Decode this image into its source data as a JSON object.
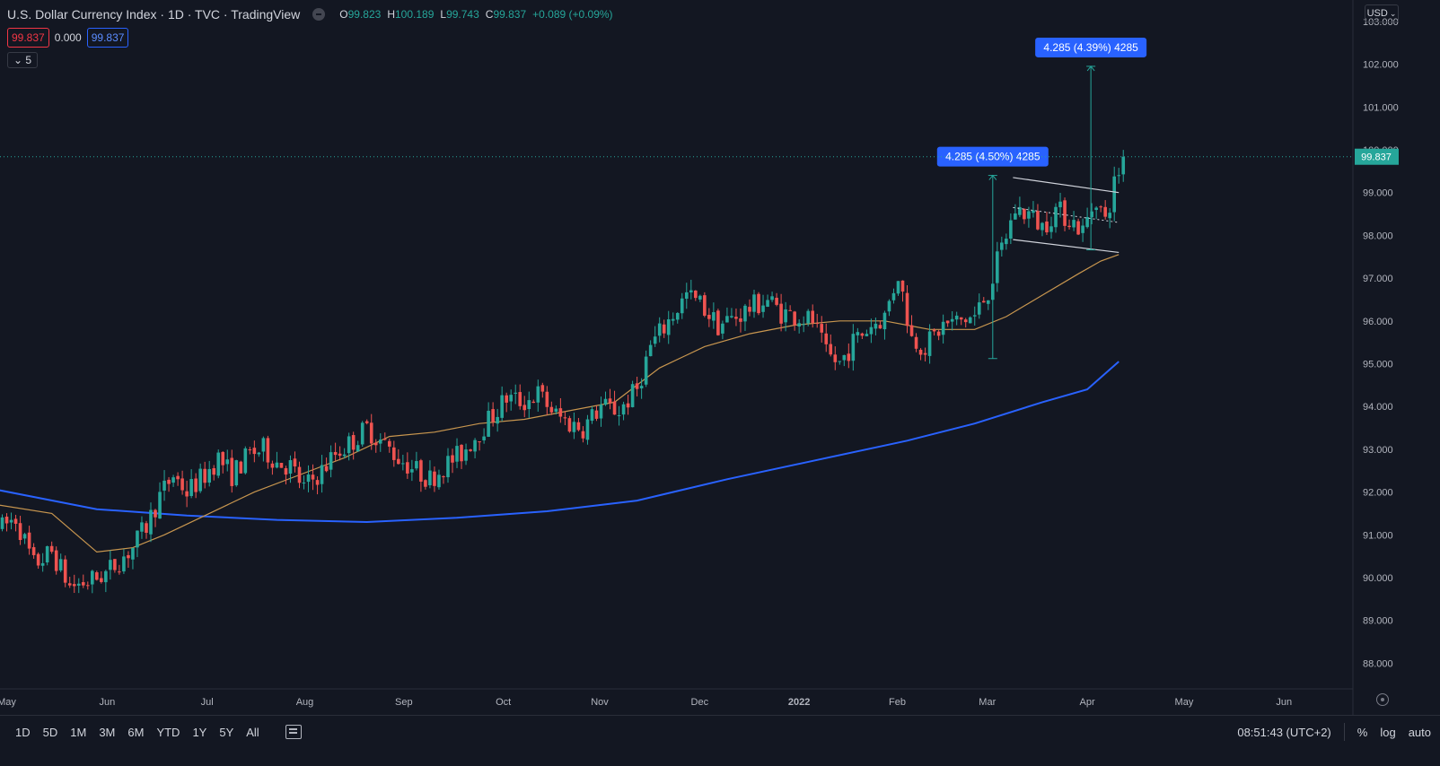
{
  "header": {
    "title": "U.S. Dollar Currency Index · 1D · TVC · TradingView",
    "ohlc": [
      {
        "k": "O",
        "v": "99.823"
      },
      {
        "k": "H",
        "v": "100.189"
      },
      {
        "k": "L",
        "v": "99.743"
      },
      {
        "k": "C",
        "v": "99.837"
      },
      {
        "k": "",
        "v": "+0.089 (+0.09%)"
      }
    ]
  },
  "indicators": {
    "sell_price": "99.837",
    "spread": "0.000",
    "buy_price": "99.837",
    "collapse_label": "5"
  },
  "currency": "USD",
  "colors": {
    "background": "#131722",
    "up": "#26a69a",
    "down": "#ef5350",
    "ma_short": "#c8964f",
    "ma_long": "#2962ff",
    "label": "#2962ff",
    "last_price": "#26a69a"
  },
  "chart_data": {
    "type": "candlestick",
    "title": "U.S. Dollar Currency Index",
    "y_ticks": [
      "88.000",
      "89.000",
      "90.000",
      "91.000",
      "92.000",
      "93.000",
      "94.000",
      "95.000",
      "96.000",
      "97.000",
      "98.000",
      "99.000",
      "100.000",
      "101.000",
      "102.000",
      "103.000"
    ],
    "ylim": [
      87.4,
      103.5
    ],
    "x_ticks": [
      {
        "label": "May",
        "t": 0.0
      },
      {
        "label": "Jun",
        "t": 22.3
      },
      {
        "label": "Jul",
        "t": 44.5
      },
      {
        "label": "Aug",
        "t": 66.2
      },
      {
        "label": "Sep",
        "t": 88.2
      },
      {
        "label": "Oct",
        "t": 110.3
      },
      {
        "label": "Nov",
        "t": 131.7
      },
      {
        "label": "Dec",
        "t": 153.9
      },
      {
        "label": "2022",
        "t": 176.0
      },
      {
        "label": "Feb",
        "t": 197.8
      },
      {
        "label": "Mar",
        "t": 217.8
      },
      {
        "label": "Apr",
        "t": 240.0
      },
      {
        "label": "May",
        "t": 261.5
      },
      {
        "label": "Jun",
        "t": 283.7
      }
    ],
    "xlim": [
      -1.5,
      299
    ],
    "last_price": 99.837,
    "trend_points": [
      [
        -2,
        91.1
      ],
      [
        2,
        91.4
      ],
      [
        6,
        90.3
      ],
      [
        10,
        90.6
      ],
      [
        14,
        89.8
      ],
      [
        18,
        89.9
      ],
      [
        22,
        90.1
      ],
      [
        25,
        90.4
      ],
      [
        28,
        90.7
      ],
      [
        31,
        91.2
      ],
      [
        34,
        91.9
      ],
      [
        37,
        92.4
      ],
      [
        40,
        92.0
      ],
      [
        44,
        92.4
      ],
      [
        47,
        92.8
      ],
      [
        50,
        92.4
      ],
      [
        54,
        92.9
      ],
      [
        57,
        93.0
      ],
      [
        60,
        92.7
      ],
      [
        63,
        92.6
      ],
      [
        66,
        92.1
      ],
      [
        70,
        92.5
      ],
      [
        73,
        92.9
      ],
      [
        77,
        93.2
      ],
      [
        80,
        93.5
      ],
      [
        84,
        93.1
      ],
      [
        87,
        92.8
      ],
      [
        91,
        92.5
      ],
      [
        94,
        92.3
      ],
      [
        97,
        92.6
      ],
      [
        101,
        92.9
      ],
      [
        104,
        93.3
      ],
      [
        108,
        93.8
      ],
      [
        111,
        94.2
      ],
      [
        115,
        94.1
      ],
      [
        118,
        94.3
      ],
      [
        122,
        93.8
      ],
      [
        125,
        93.6
      ],
      [
        128,
        93.5
      ],
      [
        132,
        94.0
      ],
      [
        136,
        93.9
      ],
      [
        140,
        94.4
      ],
      [
        143,
        95.4
      ],
      [
        147,
        96.0
      ],
      [
        151,
        96.6
      ],
      [
        154,
        96.4
      ],
      [
        158,
        95.9
      ],
      [
        162,
        96.1
      ],
      [
        165,
        96.3
      ],
      [
        169,
        96.5
      ],
      [
        172,
        96.2
      ],
      [
        176,
        96.1
      ],
      [
        179,
        96.0
      ],
      [
        182,
        95.2
      ],
      [
        185,
        95.0
      ],
      [
        188,
        95.5
      ],
      [
        192,
        95.9
      ],
      [
        195,
        96.1
      ],
      [
        198,
        97.1
      ],
      [
        201,
        95.6
      ],
      [
        204,
        95.4
      ],
      [
        208,
        95.9
      ],
      [
        212,
        96.0
      ],
      [
        215,
        96.1
      ],
      [
        218,
        96.7
      ],
      [
        221,
        97.7
      ],
      [
        224,
        98.6
      ],
      [
        227,
        98.5
      ],
      [
        230,
        98.2
      ],
      [
        233,
        98.6
      ],
      [
        236,
        98.4
      ],
      [
        239,
        98.1
      ],
      [
        242,
        98.9
      ],
      [
        244,
        98.3
      ],
      [
        246,
        99.2
      ],
      [
        248,
        99.8
      ]
    ],
    "ma_short": [
      [
        -2,
        91.7
      ],
      [
        10,
        91.5
      ],
      [
        20,
        90.6
      ],
      [
        28,
        90.7
      ],
      [
        35,
        91.0
      ],
      [
        45,
        91.5
      ],
      [
        55,
        92.0
      ],
      [
        65,
        92.4
      ],
      [
        75,
        92.8
      ],
      [
        85,
        93.3
      ],
      [
        95,
        93.4
      ],
      [
        105,
        93.6
      ],
      [
        115,
        93.7
      ],
      [
        125,
        93.9
      ],
      [
        135,
        94.1
      ],
      [
        145,
        94.9
      ],
      [
        155,
        95.4
      ],
      [
        165,
        95.7
      ],
      [
        175,
        95.9
      ],
      [
        185,
        96.0
      ],
      [
        195,
        96.0
      ],
      [
        205,
        95.8
      ],
      [
        215,
        95.8
      ],
      [
        222,
        96.1
      ],
      [
        230,
        96.6
      ],
      [
        238,
        97.1
      ],
      [
        243,
        97.4
      ],
      [
        247,
        97.55
      ]
    ],
    "ma_long": [
      [
        -2,
        92.05
      ],
      [
        20,
        91.6
      ],
      [
        40,
        91.45
      ],
      [
        60,
        91.35
      ],
      [
        80,
        91.3
      ],
      [
        100,
        91.4
      ],
      [
        120,
        91.55
      ],
      [
        140,
        91.8
      ],
      [
        160,
        92.3
      ],
      [
        180,
        92.75
      ],
      [
        200,
        93.2
      ],
      [
        215,
        93.6
      ],
      [
        230,
        94.1
      ],
      [
        240,
        94.4
      ],
      [
        247,
        95.05
      ]
    ],
    "channel": {
      "upper": [
        [
          223.5,
          99.35
        ],
        [
          247,
          99.0
        ]
      ],
      "lower": [
        [
          223.5,
          97.9
        ],
        [
          247,
          97.6
        ]
      ],
      "mid": [
        [
          223.5,
          98.65
        ],
        [
          247,
          98.3
        ]
      ]
    },
    "measure_1": {
      "label": "4.285 (4.50%) 4285",
      "t": 219.0,
      "from": 95.12,
      "to": 99.4
    },
    "measure_2": {
      "label": "4.285 (4.39%) 4285",
      "t": 240.8,
      "from": 97.66,
      "to": 101.95
    }
  },
  "bottom": {
    "timeframes": [
      "1D",
      "5D",
      "1M",
      "3M",
      "6M",
      "YTD",
      "1Y",
      "5Y",
      "All"
    ],
    "time": "08:51:43 (UTC+2)",
    "percent": "%",
    "log": "log",
    "auto": "auto"
  }
}
